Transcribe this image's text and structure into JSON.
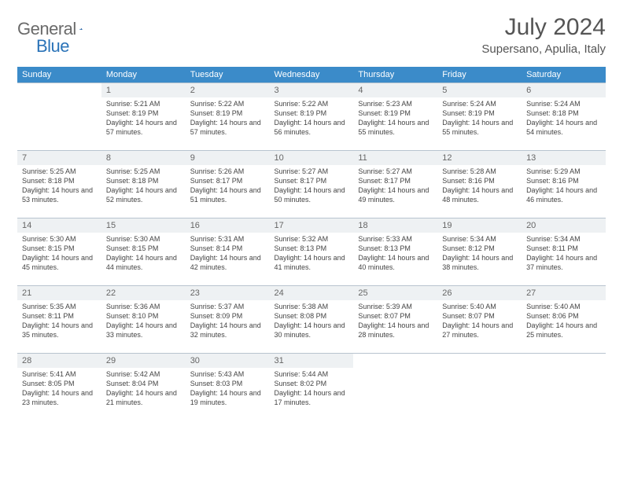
{
  "brand": {
    "word1": "General",
    "word2": "Blue"
  },
  "title": "July 2024",
  "location": "Supersano, Apulia, Italy",
  "colors": {
    "header_bg": "#3b8bc9",
    "header_text": "#ffffff",
    "cell_border": "#b8c4cf",
    "daynum_bg": "#eef1f3",
    "text": "#444444",
    "logo_gray": "#6a6a6a",
    "logo_blue": "#2a73b8"
  },
  "day_headers": [
    "Sunday",
    "Monday",
    "Tuesday",
    "Wednesday",
    "Thursday",
    "Friday",
    "Saturday"
  ],
  "weeks": [
    [
      {
        "n": "",
        "sunrise": "",
        "sunset": "",
        "daylight": ""
      },
      {
        "n": "1",
        "sunrise": "Sunrise: 5:21 AM",
        "sunset": "Sunset: 8:19 PM",
        "daylight": "Daylight: 14 hours and 57 minutes."
      },
      {
        "n": "2",
        "sunrise": "Sunrise: 5:22 AM",
        "sunset": "Sunset: 8:19 PM",
        "daylight": "Daylight: 14 hours and 57 minutes."
      },
      {
        "n": "3",
        "sunrise": "Sunrise: 5:22 AM",
        "sunset": "Sunset: 8:19 PM",
        "daylight": "Daylight: 14 hours and 56 minutes."
      },
      {
        "n": "4",
        "sunrise": "Sunrise: 5:23 AM",
        "sunset": "Sunset: 8:19 PM",
        "daylight": "Daylight: 14 hours and 55 minutes."
      },
      {
        "n": "5",
        "sunrise": "Sunrise: 5:24 AM",
        "sunset": "Sunset: 8:19 PM",
        "daylight": "Daylight: 14 hours and 55 minutes."
      },
      {
        "n": "6",
        "sunrise": "Sunrise: 5:24 AM",
        "sunset": "Sunset: 8:18 PM",
        "daylight": "Daylight: 14 hours and 54 minutes."
      }
    ],
    [
      {
        "n": "7",
        "sunrise": "Sunrise: 5:25 AM",
        "sunset": "Sunset: 8:18 PM",
        "daylight": "Daylight: 14 hours and 53 minutes."
      },
      {
        "n": "8",
        "sunrise": "Sunrise: 5:25 AM",
        "sunset": "Sunset: 8:18 PM",
        "daylight": "Daylight: 14 hours and 52 minutes."
      },
      {
        "n": "9",
        "sunrise": "Sunrise: 5:26 AM",
        "sunset": "Sunset: 8:17 PM",
        "daylight": "Daylight: 14 hours and 51 minutes."
      },
      {
        "n": "10",
        "sunrise": "Sunrise: 5:27 AM",
        "sunset": "Sunset: 8:17 PM",
        "daylight": "Daylight: 14 hours and 50 minutes."
      },
      {
        "n": "11",
        "sunrise": "Sunrise: 5:27 AM",
        "sunset": "Sunset: 8:17 PM",
        "daylight": "Daylight: 14 hours and 49 minutes."
      },
      {
        "n": "12",
        "sunrise": "Sunrise: 5:28 AM",
        "sunset": "Sunset: 8:16 PM",
        "daylight": "Daylight: 14 hours and 48 minutes."
      },
      {
        "n": "13",
        "sunrise": "Sunrise: 5:29 AM",
        "sunset": "Sunset: 8:16 PM",
        "daylight": "Daylight: 14 hours and 46 minutes."
      }
    ],
    [
      {
        "n": "14",
        "sunrise": "Sunrise: 5:30 AM",
        "sunset": "Sunset: 8:15 PM",
        "daylight": "Daylight: 14 hours and 45 minutes."
      },
      {
        "n": "15",
        "sunrise": "Sunrise: 5:30 AM",
        "sunset": "Sunset: 8:15 PM",
        "daylight": "Daylight: 14 hours and 44 minutes."
      },
      {
        "n": "16",
        "sunrise": "Sunrise: 5:31 AM",
        "sunset": "Sunset: 8:14 PM",
        "daylight": "Daylight: 14 hours and 42 minutes."
      },
      {
        "n": "17",
        "sunrise": "Sunrise: 5:32 AM",
        "sunset": "Sunset: 8:13 PM",
        "daylight": "Daylight: 14 hours and 41 minutes."
      },
      {
        "n": "18",
        "sunrise": "Sunrise: 5:33 AM",
        "sunset": "Sunset: 8:13 PM",
        "daylight": "Daylight: 14 hours and 40 minutes."
      },
      {
        "n": "19",
        "sunrise": "Sunrise: 5:34 AM",
        "sunset": "Sunset: 8:12 PM",
        "daylight": "Daylight: 14 hours and 38 minutes."
      },
      {
        "n": "20",
        "sunrise": "Sunrise: 5:34 AM",
        "sunset": "Sunset: 8:11 PM",
        "daylight": "Daylight: 14 hours and 37 minutes."
      }
    ],
    [
      {
        "n": "21",
        "sunrise": "Sunrise: 5:35 AM",
        "sunset": "Sunset: 8:11 PM",
        "daylight": "Daylight: 14 hours and 35 minutes."
      },
      {
        "n": "22",
        "sunrise": "Sunrise: 5:36 AM",
        "sunset": "Sunset: 8:10 PM",
        "daylight": "Daylight: 14 hours and 33 minutes."
      },
      {
        "n": "23",
        "sunrise": "Sunrise: 5:37 AM",
        "sunset": "Sunset: 8:09 PM",
        "daylight": "Daylight: 14 hours and 32 minutes."
      },
      {
        "n": "24",
        "sunrise": "Sunrise: 5:38 AM",
        "sunset": "Sunset: 8:08 PM",
        "daylight": "Daylight: 14 hours and 30 minutes."
      },
      {
        "n": "25",
        "sunrise": "Sunrise: 5:39 AM",
        "sunset": "Sunset: 8:07 PM",
        "daylight": "Daylight: 14 hours and 28 minutes."
      },
      {
        "n": "26",
        "sunrise": "Sunrise: 5:40 AM",
        "sunset": "Sunset: 8:07 PM",
        "daylight": "Daylight: 14 hours and 27 minutes."
      },
      {
        "n": "27",
        "sunrise": "Sunrise: 5:40 AM",
        "sunset": "Sunset: 8:06 PM",
        "daylight": "Daylight: 14 hours and 25 minutes."
      }
    ],
    [
      {
        "n": "28",
        "sunrise": "Sunrise: 5:41 AM",
        "sunset": "Sunset: 8:05 PM",
        "daylight": "Daylight: 14 hours and 23 minutes."
      },
      {
        "n": "29",
        "sunrise": "Sunrise: 5:42 AM",
        "sunset": "Sunset: 8:04 PM",
        "daylight": "Daylight: 14 hours and 21 minutes."
      },
      {
        "n": "30",
        "sunrise": "Sunrise: 5:43 AM",
        "sunset": "Sunset: 8:03 PM",
        "daylight": "Daylight: 14 hours and 19 minutes."
      },
      {
        "n": "31",
        "sunrise": "Sunrise: 5:44 AM",
        "sunset": "Sunset: 8:02 PM",
        "daylight": "Daylight: 14 hours and 17 minutes."
      },
      {
        "n": "",
        "sunrise": "",
        "sunset": "",
        "daylight": ""
      },
      {
        "n": "",
        "sunrise": "",
        "sunset": "",
        "daylight": ""
      },
      {
        "n": "",
        "sunrise": "",
        "sunset": "",
        "daylight": ""
      }
    ]
  ]
}
